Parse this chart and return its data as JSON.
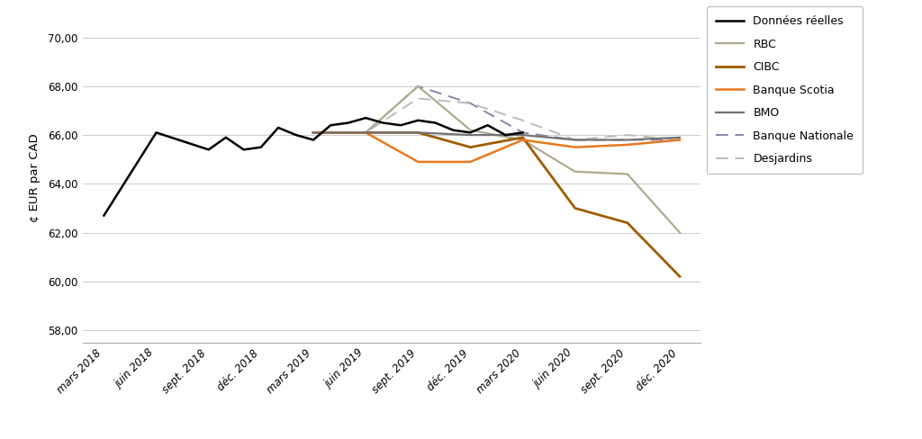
{
  "x_labels": [
    "mars 2018",
    "juin 2018",
    "sept. 2018",
    "déc. 2018",
    "mars 2019",
    "juin 2019",
    "sept. 2019",
    "déc. 2019",
    "mars 2020",
    "juin 2020",
    "sept. 2020",
    "déc. 2020"
  ],
  "real_x": [
    0,
    1,
    2,
    2.33,
    2.67,
    3,
    3.33,
    3.67,
    4,
    4.33,
    4.67,
    5,
    5.33,
    5.67,
    6,
    6.33,
    6.67,
    7,
    7.33,
    7.67,
    8
  ],
  "real_y": [
    62.7,
    66.1,
    65.4,
    65.9,
    65.4,
    65.5,
    66.3,
    66.0,
    65.8,
    66.4,
    66.5,
    66.7,
    66.5,
    66.4,
    66.6,
    66.5,
    66.2,
    66.1,
    66.4,
    66.0,
    66.1
  ],
  "rbc_x": [
    4,
    5,
    6,
    7,
    8,
    9,
    10,
    11
  ],
  "rbc_y": [
    66.1,
    66.1,
    68.0,
    66.2,
    65.8,
    64.5,
    64.4,
    62.0
  ],
  "cibc_x": [
    4,
    5,
    6,
    7,
    8,
    9,
    10,
    11
  ],
  "cibc_y": [
    66.1,
    66.1,
    66.1,
    65.5,
    65.9,
    63.0,
    62.4,
    60.2
  ],
  "scotia_x": [
    4,
    5,
    6,
    7,
    8,
    9,
    10,
    11
  ],
  "scotia_y": [
    66.1,
    66.1,
    64.9,
    64.9,
    65.8,
    65.5,
    65.6,
    65.8
  ],
  "bmo_x": [
    4,
    5,
    6,
    7,
    8,
    9,
    10,
    11
  ],
  "bmo_y": [
    66.1,
    66.1,
    66.1,
    66.0,
    66.0,
    65.8,
    65.8,
    65.9
  ],
  "bn_x": [
    4,
    5,
    6,
    7,
    8,
    9,
    10,
    11
  ],
  "bn_y": [
    66.1,
    66.1,
    68.0,
    67.3,
    66.1,
    65.8,
    65.8,
    65.8
  ],
  "desj_x": [
    4,
    5,
    6,
    7,
    8,
    9,
    10,
    11
  ],
  "desj_y": [
    66.1,
    66.1,
    67.5,
    67.3,
    66.6,
    65.8,
    66.0,
    65.8
  ],
  "ylim": [
    57.5,
    71.0
  ],
  "yticks": [
    58.0,
    60.0,
    62.0,
    64.0,
    66.0,
    68.0,
    70.0
  ],
  "ylabel": "¢ EUR par CAD",
  "color_real": "#000000",
  "color_rbc": "#b0aa90",
  "color_cibc": "#a05c00",
  "color_scotia": "#e87820",
  "color_bmo": "#737373",
  "color_bn": "#8888aa",
  "color_desj": "#bbbbbb",
  "legend_labels": [
    "Données réelles",
    "RBC",
    "CIBC",
    "Banque Scotia",
    "BMO",
    "Banque Nationale",
    "Desjardins"
  ],
  "grid_color": "#cccccc",
  "border_color": "#aaaaaa"
}
